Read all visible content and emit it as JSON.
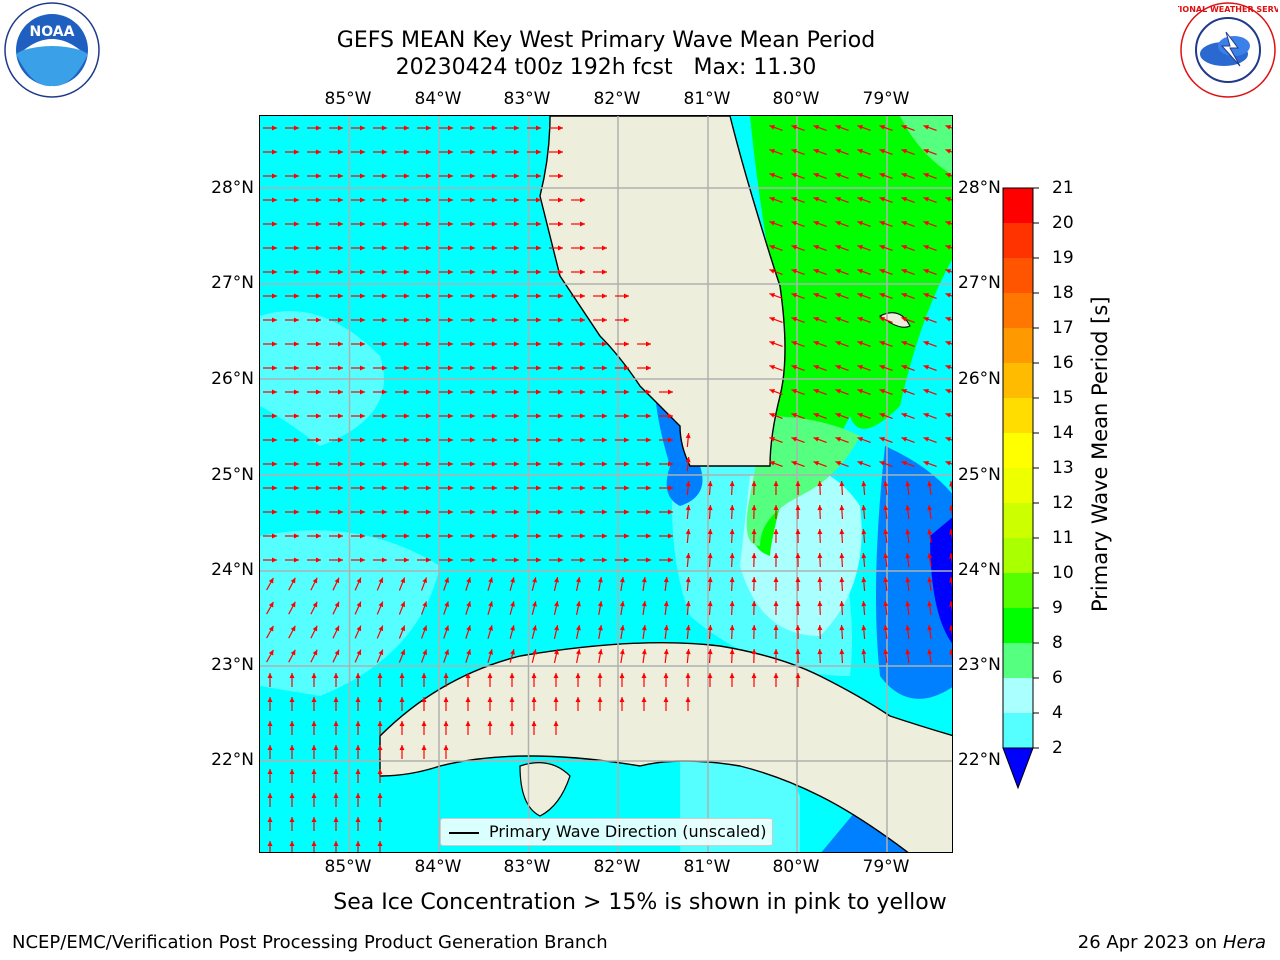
{
  "title_line1": "GEFS MEAN Key West Primary Wave Mean Period",
  "title_line2": "20230424 t00z 192h fcst   Max: 11.30",
  "lon_ticks": [
    "85°W",
    "84°W",
    "83°W",
    "82°W",
    "81°W",
    "80°W",
    "79°W"
  ],
  "lat_ticks": [
    "28°N",
    "27°N",
    "26°N",
    "25°N",
    "24°N",
    "23°N",
    "22°N"
  ],
  "colorbar": {
    "label": "Primary Wave Mean Period [s]",
    "ticks": [
      "21",
      "20",
      "19",
      "18",
      "17",
      "16",
      "15",
      "14",
      "13",
      "12",
      "11",
      "10",
      "9",
      "8",
      "6",
      "4",
      "2"
    ],
    "colors": [
      "#0000ff",
      "#0080ff",
      "#00ffff",
      "#55ffff",
      "#aaffff",
      "#55ff80",
      "#00ff00",
      "#55ff00",
      "#aaff00",
      "#ccff00",
      "#eeff00",
      "#ffff00",
      "#ffdd00",
      "#ffbb00",
      "#ff9900",
      "#ff7700",
      "#ff5500",
      "#ff3300",
      "#ff0000"
    ]
  },
  "legend_text": "Primary Wave Direction (unscaled)",
  "caption": "Sea Ice Concentration > 15% is shown in pink to yellow",
  "footer_left": "NCEP/EMC/Verification Post Processing Product Generation Branch",
  "footer_right_prefix": "26 Apr 2023 on ",
  "footer_right_host": "Hera",
  "logo_left_text": "NOAA",
  "logo_right_text": "NATIONAL WEATHER SERVICE",
  "colors": {
    "land": "#eeeedc",
    "arrow": "#ff0000",
    "grid": "#b0b0b0",
    "coast": "#000000"
  }
}
